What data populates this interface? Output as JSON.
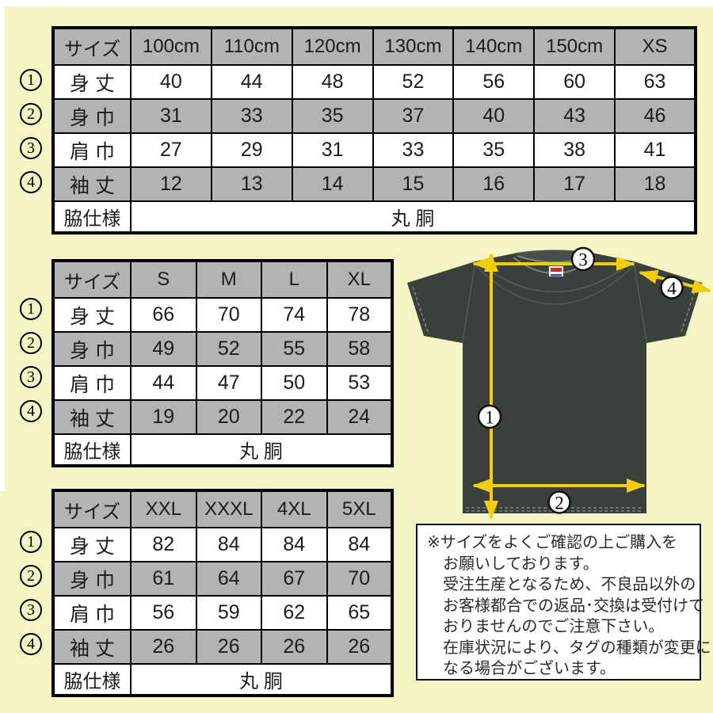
{
  "colors": {
    "background": "#f4f4c5",
    "table_gray": "#b3b3b3",
    "table_white": "#ffffff",
    "border_black": "#000000",
    "shirt_body": "#3b403c",
    "shirt_collar": "#4a4f4b",
    "arrow_yellow": "#f2ce0a",
    "tag_red": "#cc2a2a",
    "tag_blue": "#2a52c0"
  },
  "tables": [
    {
      "name": "size-table-100cm-xs",
      "header": [
        "サイズ",
        "100cm",
        "110cm",
        "120cm",
        "130cm",
        "140cm",
        "150cm",
        "XS"
      ],
      "rows": [
        {
          "marker": "1",
          "label": "身 丈",
          "shade": "white",
          "values": [
            "40",
            "44",
            "48",
            "52",
            "56",
            "60",
            "63"
          ]
        },
        {
          "marker": "2",
          "label": "身 巾",
          "shade": "gray",
          "values": [
            "31",
            "33",
            "35",
            "37",
            "40",
            "43",
            "46"
          ]
        },
        {
          "marker": "3",
          "label": "肩 巾",
          "shade": "white",
          "values": [
            "27",
            "29",
            "31",
            "33",
            "35",
            "38",
            "41"
          ]
        },
        {
          "marker": "4",
          "label": "袖 丈",
          "shade": "gray",
          "values": [
            "12",
            "13",
            "14",
            "15",
            "16",
            "17",
            "18"
          ]
        }
      ],
      "footer": {
        "label": "脇仕様",
        "value": "丸 胴"
      }
    },
    {
      "name": "size-table-s-xl",
      "header": [
        "サイズ",
        "S",
        "M",
        "L",
        "XL"
      ],
      "rows": [
        {
          "marker": "1",
          "label": "身 丈",
          "shade": "white",
          "values": [
            "66",
            "70",
            "74",
            "78"
          ]
        },
        {
          "marker": "2",
          "label": "身 巾",
          "shade": "gray",
          "values": [
            "49",
            "52",
            "55",
            "58"
          ]
        },
        {
          "marker": "3",
          "label": "肩 巾",
          "shade": "white",
          "values": [
            "44",
            "47",
            "50",
            "53"
          ]
        },
        {
          "marker": "4",
          "label": "袖 丈",
          "shade": "gray",
          "values": [
            "19",
            "20",
            "22",
            "24"
          ]
        }
      ],
      "footer": {
        "label": "脇仕様",
        "value": "丸 胴"
      }
    },
    {
      "name": "size-table-xxl-5xl",
      "header": [
        "サイズ",
        "XXL",
        "XXXL",
        "4XL",
        "5XL"
      ],
      "rows": [
        {
          "marker": "1",
          "label": "身 丈",
          "shade": "white",
          "values": [
            "82",
            "84",
            "84",
            "84"
          ]
        },
        {
          "marker": "2",
          "label": "身 巾",
          "shade": "gray",
          "values": [
            "61",
            "64",
            "67",
            "70"
          ]
        },
        {
          "marker": "3",
          "label": "肩 巾",
          "shade": "white",
          "values": [
            "56",
            "59",
            "62",
            "65"
          ]
        },
        {
          "marker": "4",
          "label": "袖 丈",
          "shade": "gray",
          "values": [
            "26",
            "26",
            "26",
            "26"
          ]
        }
      ],
      "footer": {
        "label": "脇仕様",
        "value": "丸 胴"
      }
    }
  ],
  "shirt": {
    "markers": {
      "m1": "1",
      "m2": "2",
      "m3": "3",
      "m4": "4"
    }
  },
  "notice": {
    "lines": [
      "※サイズをよくご確認の上ご購入を",
      "お願いしております。",
      "受注生産となるため、不良品以外の",
      "お客様都合での返品･交換は受付けて",
      "おりませんのでご注意下さい。",
      "在庫状況により、タグの種類が変更に",
      "なる場合がございます。"
    ]
  }
}
